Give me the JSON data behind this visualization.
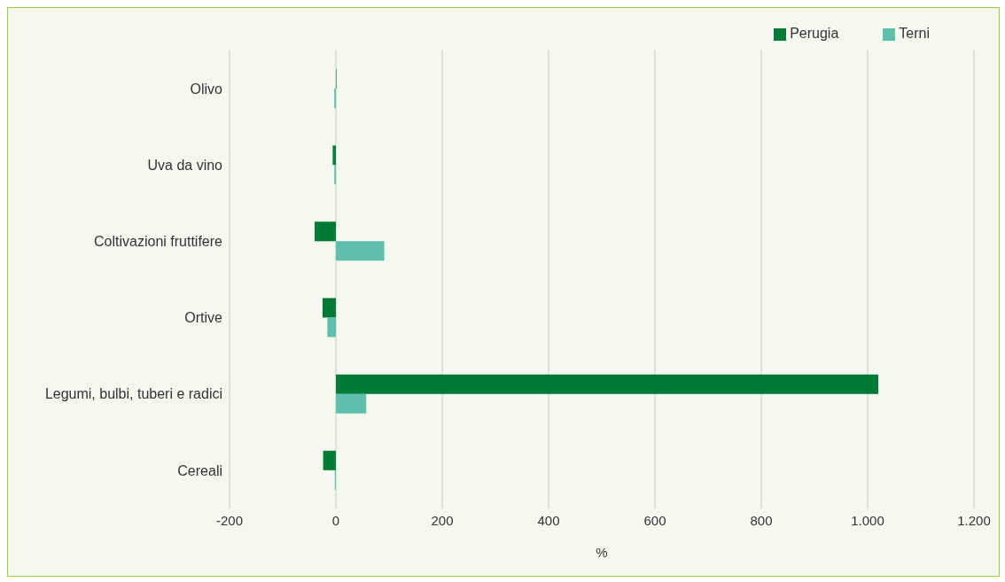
{
  "chart_data": {
    "type": "bar",
    "orientation": "horizontal",
    "xlabel": "%",
    "categories": [
      "Olivo",
      "Uva da vino",
      "Coltivazioni fruttifere",
      "Ortive",
      "Legumi, bulbi, tuberi e radici",
      "Cereali"
    ],
    "series": [
      {
        "name": "Perugia",
        "color": "#007a37",
        "values": [
          1,
          -6,
          -40,
          -25,
          1020,
          -24
        ]
      },
      {
        "name": "Terni",
        "color": "#5dbfac",
        "values": [
          -3,
          -3,
          91,
          -16,
          57,
          -2
        ]
      }
    ],
    "xlim": [
      -200,
      1200
    ],
    "xticks": [
      -200,
      0,
      200,
      400,
      600,
      800,
      {
        "value": 1000,
        "label": "1.000"
      },
      {
        "value": 1200,
        "label": "1.200"
      }
    ],
    "grid": "x",
    "legend": "top right"
  }
}
